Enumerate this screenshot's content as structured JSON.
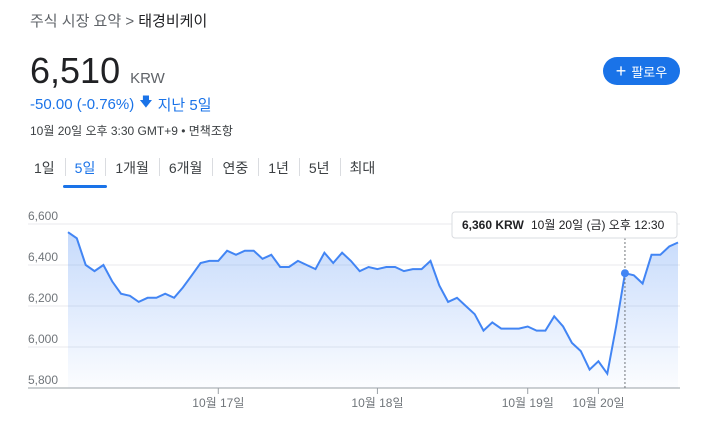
{
  "breadcrumb": {
    "parent": "주식 시장 요약",
    "separator": ">",
    "current": "태경비케이"
  },
  "price": {
    "value": "6,510",
    "currency": "KRW"
  },
  "change": {
    "text": "-50.00 (-0.76%)",
    "period": "지난 5일"
  },
  "meta": "10월 20일 오후 3:30 GMT+9 • 면책조항",
  "follow_button": {
    "label": "팔로우"
  },
  "tabs": [
    {
      "label": "1일",
      "active": false
    },
    {
      "label": "5일",
      "active": true
    },
    {
      "label": "1개월",
      "active": false
    },
    {
      "label": "6개월",
      "active": false
    },
    {
      "label": "연중",
      "active": false
    },
    {
      "label": "1년",
      "active": false
    },
    {
      "label": "5년",
      "active": false
    },
    {
      "label": "최대",
      "active": false
    }
  ],
  "tooltip": {
    "price": "6,360 KRW",
    "time": "10월 20일 (금) 오후 12:30"
  },
  "colors": {
    "accent": "#1a73e8",
    "line": "#4285f4",
    "negative": "#1a73e8"
  },
  "chart_data": {
    "type": "area",
    "y_ticks": [
      "6,600",
      "6,400",
      "6,200",
      "6,000",
      "5,800"
    ],
    "ylim": [
      5800,
      6600
    ],
    "x_labels": [
      "10월 17일",
      "10월 18일",
      "10월 19일",
      "10월 20일"
    ],
    "series": [
      {
        "values": [
          6560,
          6530,
          6400,
          6370,
          6400,
          6320,
          6260,
          6250,
          6220,
          6240,
          6240,
          6260,
          6240,
          6290,
          6350,
          6410,
          6420,
          6420,
          6470,
          6450,
          6470,
          6470,
          6430,
          6450,
          6390,
          6390,
          6420,
          6400,
          6380,
          6460,
          6410,
          6460,
          6420,
          6370,
          6390,
          6380,
          6390,
          6390,
          6370,
          6380,
          6380,
          6420,
          6300,
          6220,
          6240,
          6200,
          6160,
          6080,
          6120,
          6090,
          6090,
          6090,
          6100,
          6080,
          6080,
          6150,
          6100,
          6020,
          5980,
          5890,
          5930,
          5870,
          6100,
          6360,
          6350,
          6310,
          6450,
          6450,
          6490,
          6510
        ],
        "day_starts": [
          0,
          17,
          35,
          52
        ],
        "highlight_index": 63,
        "highlight_value": 6360
      }
    ],
    "grid": true
  }
}
